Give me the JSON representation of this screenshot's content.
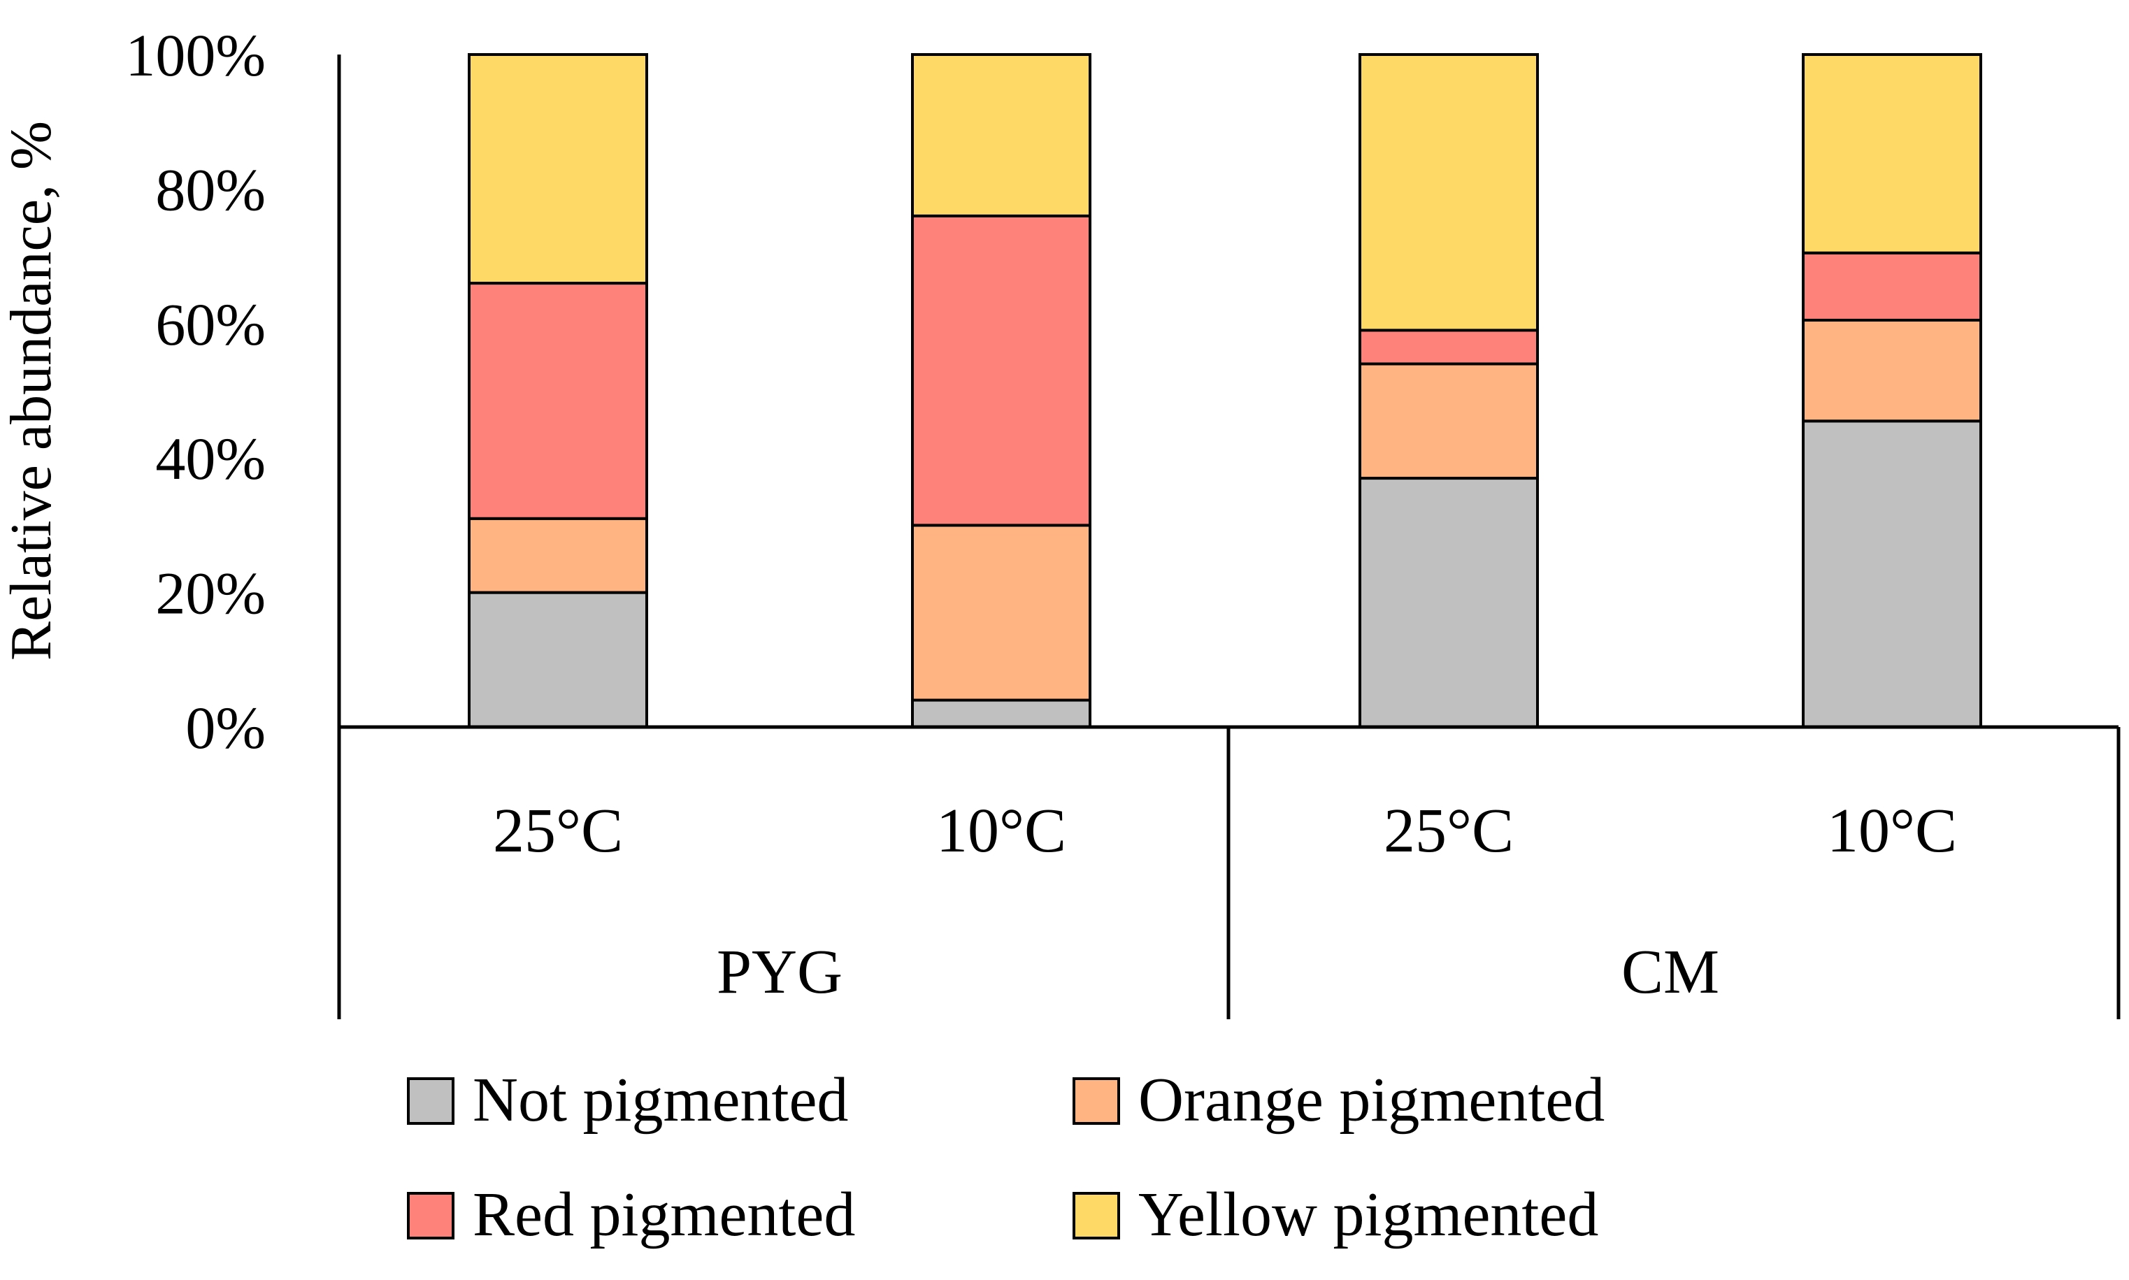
{
  "chart_data": {
    "type": "bar",
    "stacked": true,
    "title": "",
    "xlabel": "",
    "ylabel": "Relative abundance, %",
    "ylim": [
      0,
      100
    ],
    "yticks": [
      "0%",
      "20%",
      "40%",
      "60%",
      "80%",
      "100%"
    ],
    "categories": [
      "25°C",
      "10°C",
      "25°C",
      "10°C"
    ],
    "groups": [
      {
        "label": "PYG",
        "span": [
          0,
          1
        ]
      },
      {
        "label": "CM",
        "span": [
          2,
          3
        ]
      }
    ],
    "series": [
      {
        "name": "Not pigmented",
        "color": "#C0C0C0",
        "values": [
          20,
          4,
          37,
          45.5
        ]
      },
      {
        "name": "Orange pigmented",
        "color": "#FFB482",
        "values": [
          11,
          26,
          17,
          15
        ]
      },
      {
        "name": "Red pigmented",
        "color": "#FF827A",
        "values": [
          35,
          46,
          5,
          10
        ]
      },
      {
        "name": "Yellow pigmented",
        "color": "#FFD965",
        "values": [
          34,
          24,
          41,
          29.5
        ]
      }
    ],
    "legend": "bottom",
    "grid": false
  }
}
